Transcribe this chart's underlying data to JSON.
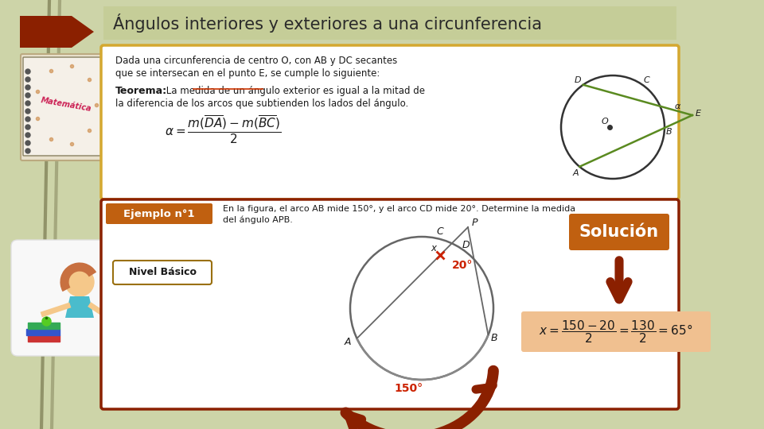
{
  "bg_color": "#cdd4a8",
  "title": "Ángulos interiores y exteriores a una circunferencia",
  "title_box_color": "#c5cd98",
  "title_text_color": "#2a2a2a",
  "dark_red": "#8b2000",
  "orange_brown": "#c06010",
  "gold_border": "#d4a830",
  "ejemplo_label": "Ejemplo n°1",
  "nivel_label": "Nivel Básico",
  "solucion_label": "Solución",
  "dada_text1": "Dada una circunferencia de centro O, con AB y DC secantes",
  "dada_text2": "que se intersecan en el punto E, se cumple lo siguiente:",
  "teorema_bold": "Teorema:",
  "teorema_rest": " La medida de un ángulo exterior es igual a la mitad de",
  "teorema_line2": "la diferencia de los arcos que subtienden los lados del ángulo.",
  "problem_line1": "En la figura, el arco AB mide 150°, y el arco CD mide 20°. Determine la medida",
  "problem_line2": "del ángulo APB.",
  "formula_box_color": "#f0c090",
  "label_150": "150°",
  "label_20": "20°",
  "green_color": "#5a8a20",
  "nivel_border": "#9a7010",
  "left_bar_color": "#888060",
  "arrow_chevron_color": "#8b2000",
  "formula_color": "#1a1a1a"
}
